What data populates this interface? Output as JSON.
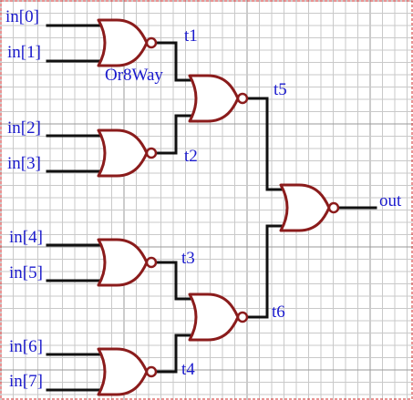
{
  "colors": {
    "label": "#1a1acd",
    "gate": "#8b1c1c",
    "wire": "#111111",
    "grid_fine": "#c9c9c9",
    "grid_major": "#9a9a9a",
    "border": "#d62828"
  },
  "chip_name": "Or8Way",
  "inputs": [
    "in[0]",
    "in[1]",
    "in[2]",
    "in[3]",
    "in[4]",
    "in[5]",
    "in[6]",
    "in[7]"
  ],
  "wires": [
    "t1",
    "t2",
    "t3",
    "t4",
    "t5",
    "t6"
  ],
  "output": "out",
  "gates": [
    {
      "type": "NOR",
      "inputs": [
        "in[0]",
        "in[1]"
      ],
      "output": "t1"
    },
    {
      "type": "NOR",
      "inputs": [
        "in[2]",
        "in[3]"
      ],
      "output": "t2"
    },
    {
      "type": "NOR",
      "inputs": [
        "in[4]",
        "in[5]"
      ],
      "output": "t3"
    },
    {
      "type": "NOR",
      "inputs": [
        "in[6]",
        "in[7]"
      ],
      "output": "t4"
    },
    {
      "type": "NOR",
      "inputs": [
        "t1",
        "t2"
      ],
      "output": "t5"
    },
    {
      "type": "NOR",
      "inputs": [
        "t3",
        "t4"
      ],
      "output": "t6"
    },
    {
      "type": "NOR",
      "inputs": [
        "t5",
        "t6"
      ],
      "output": "out"
    }
  ]
}
